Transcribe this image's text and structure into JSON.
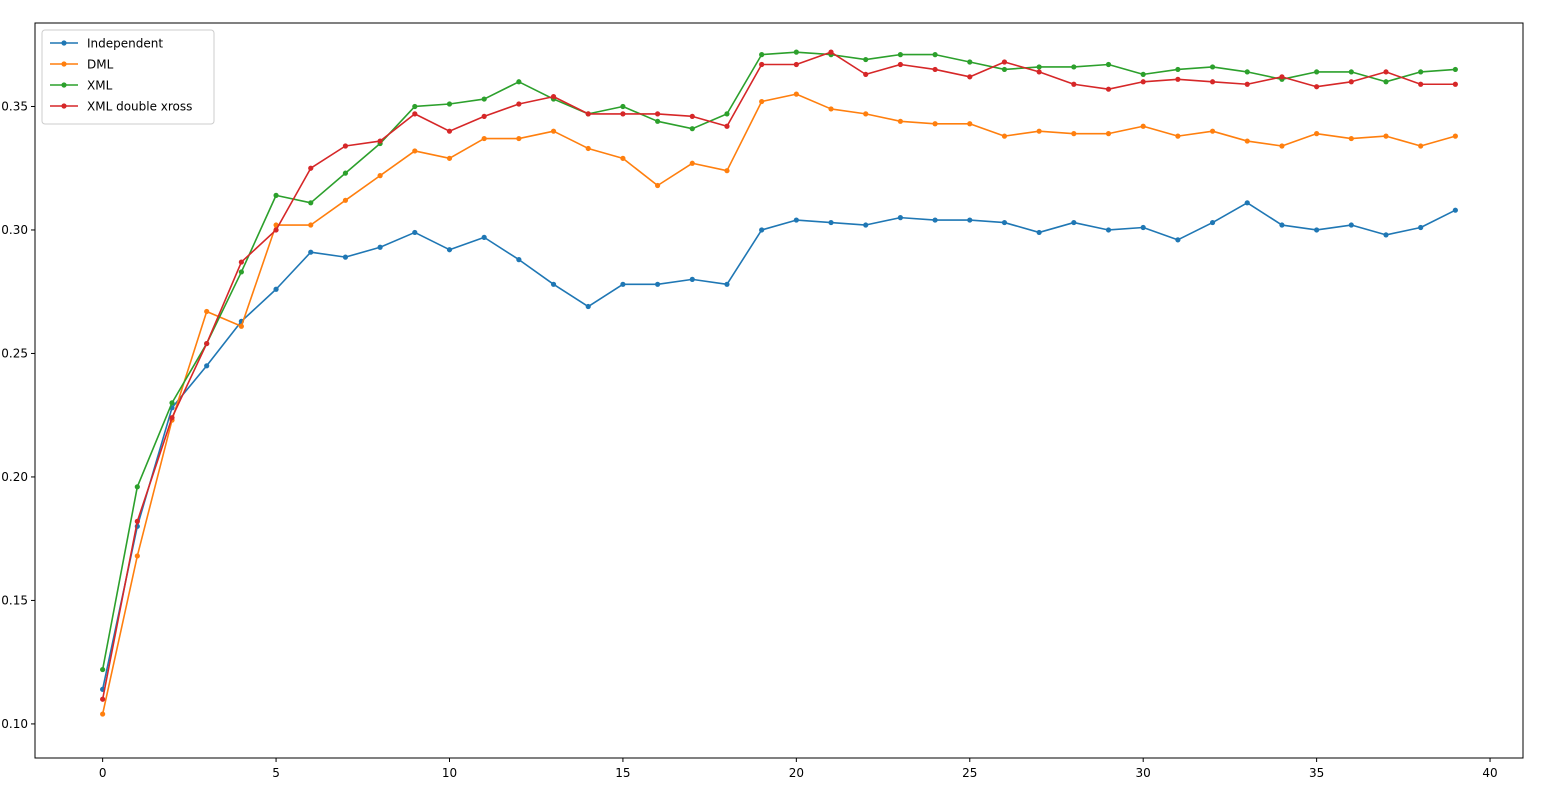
{
  "chart_data": {
    "type": "line",
    "title": "",
    "xlabel": "",
    "ylabel": "",
    "xlim": [
      -1.95,
      40.95
    ],
    "ylim": [
      0.0862,
      0.3838
    ],
    "xticks": [
      0,
      5,
      10,
      15,
      20,
      25,
      30,
      35,
      40
    ],
    "xtick_labels": [
      "0",
      "5",
      "10",
      "15",
      "20",
      "25",
      "30",
      "35",
      "40"
    ],
    "yticks": [
      0.1,
      0.15,
      0.2,
      0.25,
      0.3,
      0.35
    ],
    "ytick_labels": [
      "0.10",
      "0.15",
      "0.20",
      "0.25",
      "0.30",
      "0.35"
    ],
    "grid": false,
    "legend_position": "top-left",
    "x": [
      0,
      1,
      2,
      3,
      4,
      5,
      6,
      7,
      8,
      9,
      10,
      11,
      12,
      13,
      14,
      15,
      16,
      17,
      18,
      19,
      20,
      21,
      22,
      23,
      24,
      25,
      26,
      27,
      28,
      29,
      30,
      31,
      32,
      33,
      34,
      35,
      36,
      37,
      38,
      39
    ],
    "series": [
      {
        "name": "Independent",
        "color": "#1f77b4",
        "values": [
          0.114,
          0.18,
          0.228,
          0.245,
          0.263,
          0.276,
          0.291,
          0.289,
          0.293,
          0.299,
          0.292,
          0.297,
          0.288,
          0.278,
          0.269,
          0.278,
          0.278,
          0.28,
          0.278,
          0.3,
          0.304,
          0.303,
          0.302,
          0.305,
          0.304,
          0.304,
          0.303,
          0.299,
          0.303,
          0.3,
          0.301,
          0.296,
          0.303,
          0.311,
          0.302,
          0.3,
          0.302,
          0.298,
          0.301,
          0.308
        ]
      },
      {
        "name": "DML",
        "color": "#ff7f0e",
        "values": [
          0.104,
          0.168,
          0.223,
          0.267,
          0.261,
          0.302,
          0.302,
          0.312,
          0.322,
          0.332,
          0.329,
          0.337,
          0.337,
          0.34,
          0.333,
          0.329,
          0.318,
          0.327,
          0.324,
          0.352,
          0.355,
          0.349,
          0.347,
          0.344,
          0.343,
          0.343,
          0.338,
          0.34,
          0.339,
          0.339,
          0.342,
          0.338,
          0.34,
          0.336,
          0.334,
          0.339,
          0.337,
          0.338,
          0.334,
          0.338
        ]
      },
      {
        "name": "XML",
        "color": "#2ca02c",
        "values": [
          0.122,
          0.196,
          0.23,
          0.254,
          0.283,
          0.314,
          0.311,
          0.323,
          0.335,
          0.35,
          0.351,
          0.353,
          0.36,
          0.353,
          0.347,
          0.35,
          0.344,
          0.341,
          0.347,
          0.371,
          0.372,
          0.371,
          0.369,
          0.371,
          0.371,
          0.368,
          0.365,
          0.366,
          0.366,
          0.367,
          0.363,
          0.365,
          0.366,
          0.364,
          0.361,
          0.364,
          0.364,
          0.36,
          0.364,
          0.365
        ]
      },
      {
        "name": "XML double xross",
        "color": "#d62728",
        "values": [
          0.11,
          0.182,
          0.224,
          0.254,
          0.287,
          0.3,
          0.325,
          0.334,
          0.336,
          0.347,
          0.34,
          0.346,
          0.351,
          0.354,
          0.347,
          0.347,
          0.347,
          0.346,
          0.342,
          0.367,
          0.367,
          0.372,
          0.363,
          0.367,
          0.365,
          0.362,
          0.368,
          0.364,
          0.359,
          0.357,
          0.36,
          0.361,
          0.36,
          0.359,
          0.362,
          0.358,
          0.36,
          0.364,
          0.359,
          0.359
        ]
      }
    ]
  }
}
